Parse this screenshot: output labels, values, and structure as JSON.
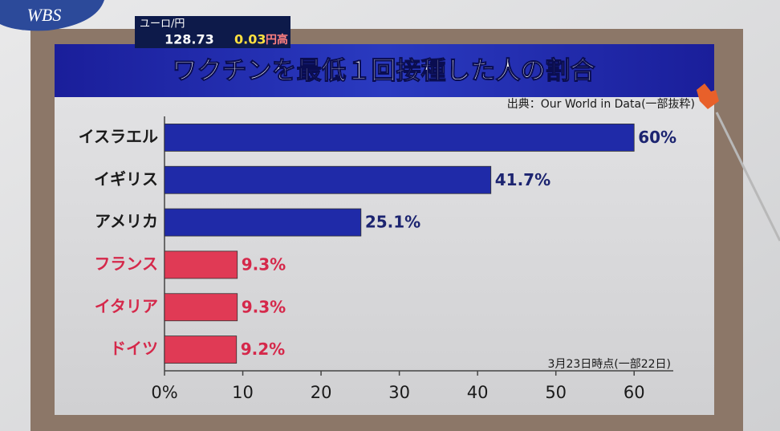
{
  "header": {
    "logo": "WBS",
    "ticker_label": "ユーロ/円",
    "ticker_rate": "128.73",
    "ticker_change": "0.03",
    "ticker_direction": "円高"
  },
  "chart_data": {
    "type": "bar",
    "orientation": "horizontal",
    "title": "ワクチンを最低１回接種した人の割合",
    "source": "出典：Our World in Data(一部抜粋)",
    "note": "3月23日時点(一部22日)",
    "categories": [
      "イスラエル",
      "イギリス",
      "アメリカ",
      "フランス",
      "イタリア",
      "ドイツ"
    ],
    "values": [
      60,
      41.7,
      25.1,
      9.3,
      9.3,
      9.2
    ],
    "value_labels": [
      "60%",
      "41.7%",
      "25.1%",
      "9.3%",
      "9.3%",
      "9.2%"
    ],
    "colors": [
      "#1f2aa8",
      "#1f2aa8",
      "#1f2aa8",
      "#e03a55",
      "#e03a55",
      "#e03a55"
    ],
    "label_colors": [
      "#1a1a1a",
      "#1a1a1a",
      "#1a1a1a",
      "#d5284a",
      "#d5284a",
      "#d5284a"
    ],
    "value_label_colors": [
      "#1c2470",
      "#1c2470",
      "#1c2470",
      "#d5284a",
      "#d5284a",
      "#d5284a"
    ],
    "xlim": [
      0,
      65
    ],
    "xticks": [
      {
        "value": 0,
        "label": "0%"
      },
      10,
      20,
      30,
      40,
      50,
      60
    ],
    "grid": false
  }
}
